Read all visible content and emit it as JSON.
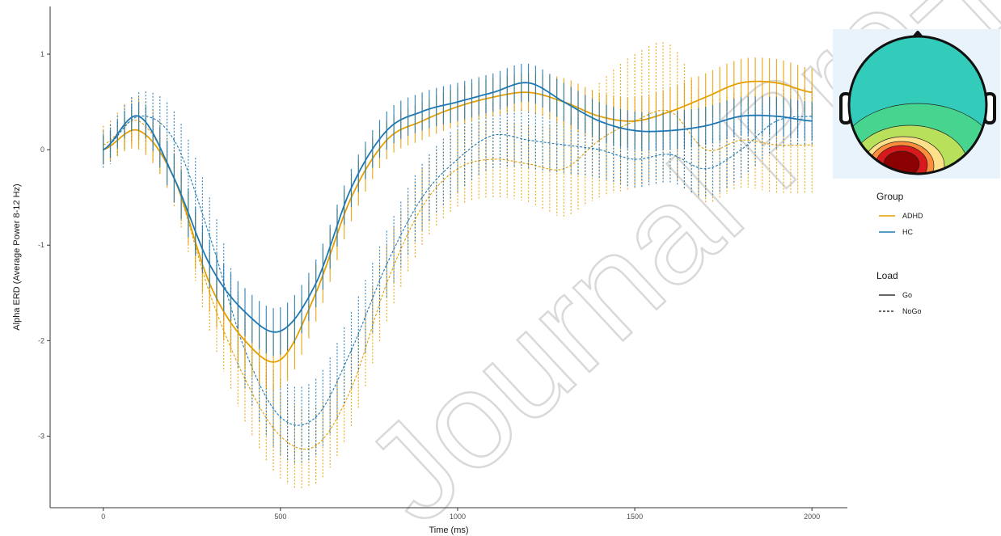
{
  "watermark": "Journal Pre-proof",
  "chart_data": {
    "type": "line",
    "xlabel": "Time (ms)",
    "ylabel": "Alpha ERD (Average Power 8-12 Hz)",
    "xlim": [
      -150,
      2100
    ],
    "ylim": [
      -3.75,
      1.5
    ],
    "x_ticks": [
      0,
      500,
      1000,
      1500,
      2000
    ],
    "x_tick_labels": [
      "0",
      "500",
      "1000",
      "1500",
      "2000"
    ],
    "y_ticks": [
      1,
      0,
      -1,
      -2,
      -3
    ],
    "y_tick_labels": [
      "1",
      "0",
      "-1",
      "-2",
      "-3"
    ],
    "grid": false,
    "legend_placement": "right",
    "inset": "topographic head map (alpha power), strongest at posterior sites",
    "inset_palette": [
      "#8b0000",
      "#d7191c",
      "#fd8d3c",
      "#fee08b",
      "#b8e05a",
      "#47d48f",
      "#33ccbb"
    ],
    "x": [
      0,
      100,
      200,
      300,
      400,
      500,
      600,
      700,
      800,
      900,
      1000,
      1100,
      1200,
      1300,
      1400,
      1500,
      1600,
      1700,
      1800,
      1900,
      2000
    ],
    "series": [
      {
        "name": "ADHD Go",
        "group": "ADHD",
        "load": "Go",
        "color": "#E69F00",
        "dash": "solid",
        "values": [
          0.0,
          0.2,
          -0.3,
          -1.4,
          -2.0,
          -2.2,
          -1.5,
          -0.5,
          0.1,
          0.3,
          0.45,
          0.55,
          0.6,
          0.5,
          0.35,
          0.3,
          0.4,
          0.55,
          0.7,
          0.7,
          0.6
        ],
        "error": [
          0.15,
          0.2,
          0.25,
          0.3,
          0.3,
          0.3,
          0.3,
          0.25,
          0.2,
          0.2,
          0.2,
          0.2,
          0.2,
          0.25,
          0.25,
          0.25,
          0.25,
          0.25,
          0.25,
          0.25,
          0.25
        ]
      },
      {
        "name": "HC Go",
        "group": "HC",
        "load": "Go",
        "color": "#1F78B4",
        "dash": "solid",
        "values": [
          0.0,
          0.35,
          -0.3,
          -1.2,
          -1.7,
          -1.9,
          -1.4,
          -0.4,
          0.2,
          0.4,
          0.5,
          0.6,
          0.7,
          0.5,
          0.3,
          0.2,
          0.2,
          0.25,
          0.35,
          0.35,
          0.3
        ],
        "error": [
          0.15,
          0.15,
          0.25,
          0.25,
          0.25,
          0.25,
          0.25,
          0.2,
          0.2,
          0.2,
          0.2,
          0.2,
          0.2,
          0.2,
          0.2,
          0.2,
          0.2,
          0.2,
          0.2,
          0.2,
          0.2
        ]
      },
      {
        "name": "ADHD NoGo",
        "group": "ADHD",
        "load": "NoGo",
        "color": "#E69F00",
        "dash": "dashed",
        "values": [
          0.05,
          0.3,
          -0.3,
          -1.5,
          -2.4,
          -3.0,
          -3.1,
          -2.5,
          -1.4,
          -0.6,
          -0.2,
          -0.1,
          -0.15,
          -0.2,
          0.1,
          0.3,
          0.4,
          0.0,
          0.1,
          0.05,
          0.05
        ],
        "error": [
          0.2,
          0.25,
          0.3,
          0.4,
          0.45,
          0.45,
          0.4,
          0.4,
          0.4,
          0.4,
          0.4,
          0.4,
          0.4,
          0.5,
          0.6,
          0.7,
          0.7,
          0.55,
          0.5,
          0.5,
          0.5
        ]
      },
      {
        "name": "HC NoGo",
        "group": "HC",
        "load": "NoGo",
        "color": "#1F78B4",
        "dash": "dashed",
        "values": [
          0.0,
          0.35,
          0.1,
          -0.9,
          -2.1,
          -2.8,
          -2.8,
          -2.1,
          -1.2,
          -0.5,
          -0.1,
          0.15,
          0.1,
          0.05,
          0.0,
          -0.1,
          -0.05,
          -0.2,
          0.0,
          0.3,
          0.35
        ],
        "error": [
          0.2,
          0.25,
          0.3,
          0.4,
          0.4,
          0.4,
          0.4,
          0.4,
          0.35,
          0.35,
          0.35,
          0.35,
          0.3,
          0.3,
          0.3,
          0.3,
          0.3,
          0.3,
          0.3,
          0.3,
          0.3
        ]
      }
    ],
    "legend": [
      {
        "title": "Group",
        "items": [
          {
            "label": "ADHD",
            "color": "#E69F00",
            "dash": "solid"
          },
          {
            "label": "HC",
            "color": "#1F78B4",
            "dash": "solid"
          }
        ]
      },
      {
        "title": "Load",
        "items": [
          {
            "label": "Go",
            "color": "#333333",
            "dash": "solid"
          },
          {
            "label": "NoGo",
            "color": "#333333",
            "dash": "dashed"
          }
        ]
      }
    ]
  }
}
